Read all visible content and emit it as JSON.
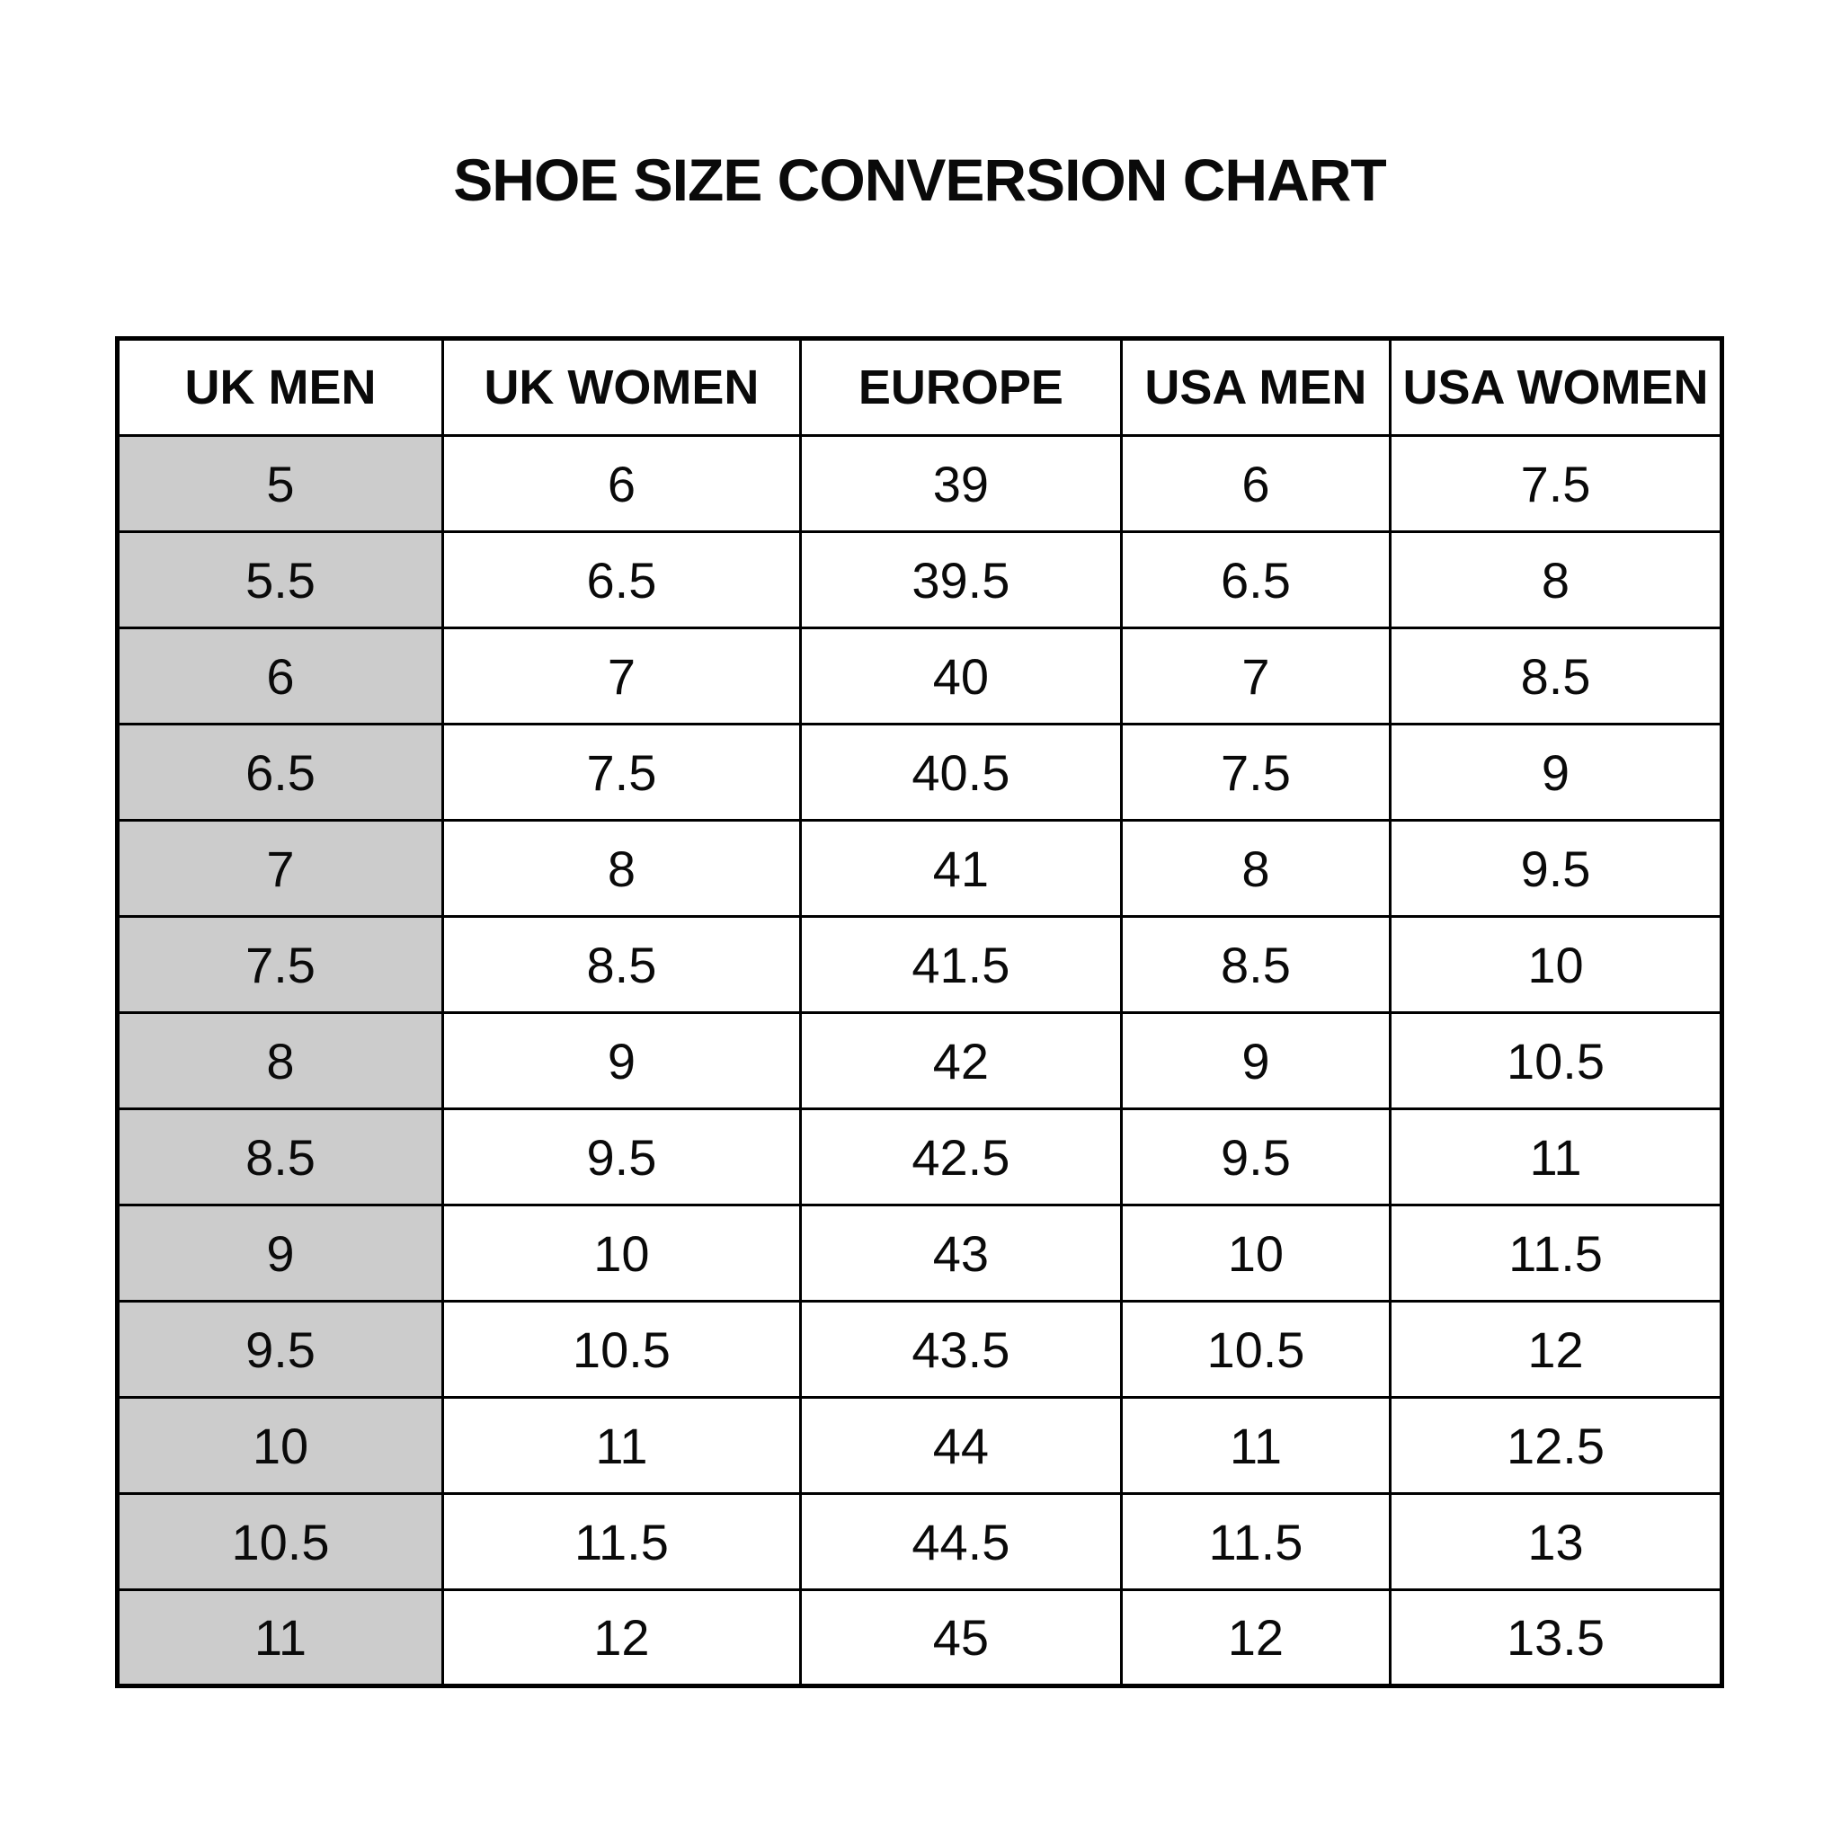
{
  "page": {
    "title": "SHOE SIZE CONVERSION CHART"
  },
  "colors": {
    "page_bg": "#ffffff",
    "highlight_column_bg": "#cccccc",
    "border": "#000000",
    "text": "#0a0a0a"
  },
  "chart_data": {
    "type": "table",
    "title": "SHOE SIZE CONVERSION CHART",
    "columns": [
      "UK MEN",
      "UK WOMEN",
      "EUROPE",
      "USA MEN",
      "USA WOMEN"
    ],
    "highlighted_column": "UK MEN",
    "rows": [
      [
        "5",
        "6",
        "39",
        "6",
        "7.5"
      ],
      [
        "5.5",
        "6.5",
        "39.5",
        "6.5",
        "8"
      ],
      [
        "6",
        "7",
        "40",
        "7",
        "8.5"
      ],
      [
        "6.5",
        "7.5",
        "40.5",
        "7.5",
        "9"
      ],
      [
        "7",
        "8",
        "41",
        "8",
        "9.5"
      ],
      [
        "7.5",
        "8.5",
        "41.5",
        "8.5",
        "10"
      ],
      [
        "8",
        "9",
        "42",
        "9",
        "10.5"
      ],
      [
        "8.5",
        "9.5",
        "42.5",
        "9.5",
        "11"
      ],
      [
        "9",
        "10",
        "43",
        "10",
        "11.5"
      ],
      [
        "9.5",
        "10.5",
        "43.5",
        "10.5",
        "12"
      ],
      [
        "10",
        "11",
        "44",
        "11",
        "12.5"
      ],
      [
        "10.5",
        "11.5",
        "44.5",
        "11.5",
        "13"
      ],
      [
        "11",
        "12",
        "45",
        "12",
        "13.5"
      ]
    ]
  }
}
